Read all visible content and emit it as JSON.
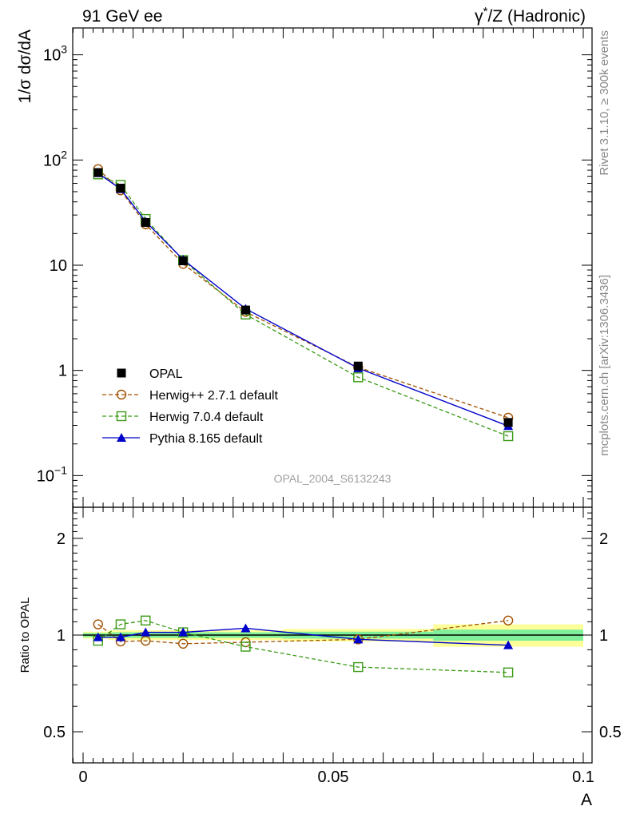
{
  "header": {
    "left": "91 GeV ee",
    "right_gamma": "γ",
    "right_star": "*",
    "right_rest": "/Z (Hadronic)"
  },
  "side": {
    "top": "Rivet 3.1.10, ≥ 300k events",
    "bottom": "mcplots.cern.ch [arXiv:1306.3436]"
  },
  "chart_data": [
    {
      "type": "line",
      "panel": "main",
      "yscale": "log",
      "ylabel": "1/σ dσ/dA",
      "xlabel": "A",
      "xlim": [
        0,
        0.1
      ],
      "ylim": [
        0.05,
        1800
      ],
      "watermark": "OPAL_2004_S6132243",
      "legend_position": "lower-left",
      "y_ticks": [
        {
          "value": 0.1,
          "base": "10",
          "exp": "−1",
          "text": ""
        },
        {
          "value": 1,
          "base": "",
          "exp": "",
          "text": "1"
        },
        {
          "value": 10,
          "base": "",
          "exp": "",
          "text": "10"
        },
        {
          "value": 100,
          "base": "10",
          "exp": "2",
          "text": ""
        },
        {
          "value": 1000,
          "base": "10",
          "exp": "3",
          "text": ""
        }
      ],
      "x": [
        0.003,
        0.0075,
        0.0125,
        0.02,
        0.0325,
        0.055,
        0.085
      ],
      "series": [
        {
          "name": "OPAL",
          "style": "data",
          "color": "#000000",
          "marker": "filled-square",
          "values": [
            76,
            54,
            25.5,
            11.0,
            3.75,
            1.1,
            0.32
          ]
        },
        {
          "name": "Herwig++ 2.7.1 default",
          "style": "dashed",
          "color": "#a05000",
          "marker": "open-circle",
          "values": [
            82,
            51.5,
            24.5,
            10.3,
            3.6,
            1.07,
            0.355
          ]
        },
        {
          "name": "Herwig 7.0.4 default",
          "style": "dashed",
          "color": "#3a9a14",
          "marker": "open-square",
          "values": [
            73,
            58,
            27.5,
            11.2,
            3.4,
            0.86,
            0.237
          ]
        },
        {
          "name": "Pythia 8.165 default",
          "style": "solid",
          "color": "#0000cc",
          "marker": "filled-triangle",
          "values": [
            75,
            53,
            26,
            11.3,
            3.85,
            1.05,
            0.296
          ]
        }
      ]
    },
    {
      "type": "line",
      "panel": "ratio",
      "yscale": "log",
      "ylabel": "Ratio to OPAL",
      "xlabel": "A",
      "xlim": [
        0,
        0.1
      ],
      "ylim": [
        0.4,
        2.5
      ],
      "y_ticks": [
        0.5,
        1,
        2
      ],
      "y_tick_labels": [
        "0.5",
        "1",
        "2"
      ],
      "x_ticks": [
        0,
        0.05,
        0.1
      ],
      "x_tick_labels": [
        "0",
        "0.05",
        "0.1"
      ],
      "uncertainty_bands": {
        "x_edges": [
          0,
          0.005,
          0.01,
          0.015,
          0.025,
          0.04,
          0.07,
          0.1
        ],
        "stat": [
          0.015,
          0.02,
          0.02,
          0.02,
          0.02,
          0.025,
          0.04
        ],
        "total": [
          0.025,
          0.035,
          0.035,
          0.035,
          0.035,
          0.045,
          0.08
        ],
        "stat_color": "#80ef99",
        "total_color": "#ffff99"
      },
      "x": [
        0.003,
        0.0075,
        0.0125,
        0.02,
        0.0325,
        0.055,
        0.085
      ],
      "series": [
        {
          "name": "Herwig++ 2.7.1 default",
          "style": "dashed",
          "color": "#a05000",
          "marker": "open-circle",
          "values": [
            1.08,
            0.955,
            0.96,
            0.94,
            0.95,
            0.97,
            1.11
          ]
        },
        {
          "name": "Herwig 7.0.4 default",
          "style": "dashed",
          "color": "#3a9a14",
          "marker": "open-square",
          "values": [
            0.96,
            1.08,
            1.11,
            1.02,
            0.92,
            0.795,
            0.765
          ]
        },
        {
          "name": "Pythia 8.165 default",
          "style": "solid",
          "color": "#0000cc",
          "marker": "filled-triangle",
          "values": [
            0.985,
            0.985,
            1.02,
            1.02,
            1.05,
            0.97,
            0.93
          ]
        }
      ]
    }
  ]
}
